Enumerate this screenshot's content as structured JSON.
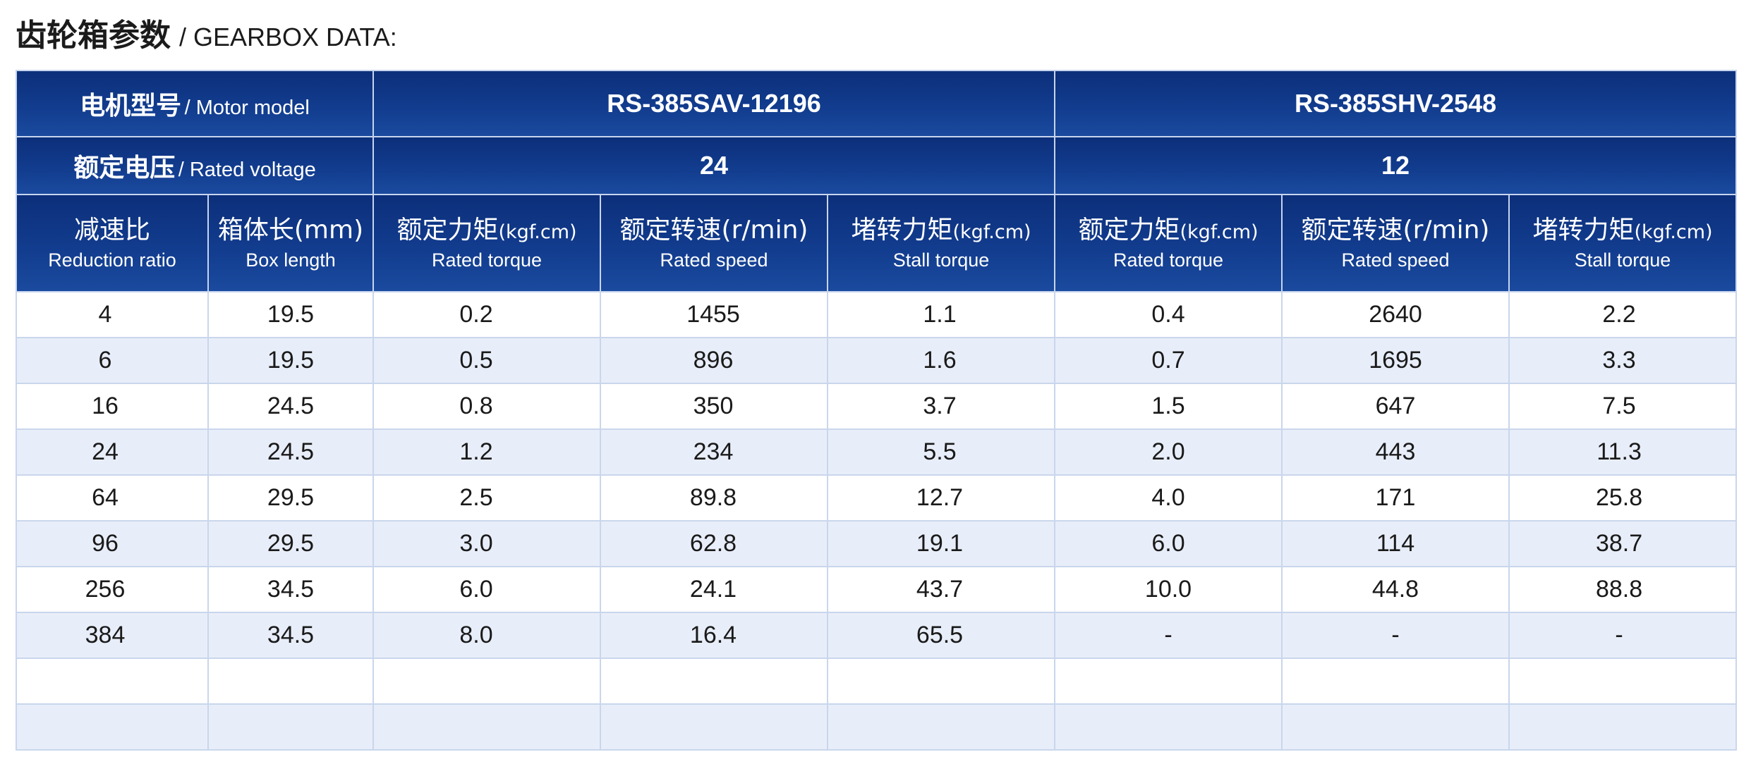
{
  "title": {
    "cn": "齿轮箱参数",
    "en": "/ GEARBOX DATA:"
  },
  "header": {
    "motor_label_cn": "电机型号",
    "motor_label_en": "/ Motor model",
    "voltage_label_cn": "额定电压",
    "voltage_label_en": "/ Rated voltage",
    "models": [
      {
        "name": "RS-385SAV-12196",
        "voltage": "24"
      },
      {
        "name": "RS-385SHV-2548",
        "voltage": "12"
      }
    ],
    "columns": [
      {
        "cn": "减速比",
        "unit": "",
        "en": "Reduction ratio"
      },
      {
        "cn": "箱体长(mm)",
        "unit": "",
        "en": "Box length"
      },
      {
        "cn": "额定力矩",
        "unit": "(kgf.cm)",
        "en": "Rated torque"
      },
      {
        "cn": "额定转速(r/min)",
        "unit": "",
        "en": "Rated speed"
      },
      {
        "cn": "堵转力矩",
        "unit": "(kgf.cm)",
        "en": "Stall torque"
      },
      {
        "cn": "额定力矩",
        "unit": "(kgf.cm)",
        "en": "Rated torque"
      },
      {
        "cn": "额定转速(r/min)",
        "unit": "",
        "en": "Rated speed"
      },
      {
        "cn": "堵转力矩",
        "unit": "(kgf.cm)",
        "en": "Stall torque"
      }
    ]
  },
  "rows": [
    [
      "4",
      "19.5",
      "0.2",
      "1455",
      "1.1",
      "0.4",
      "2640",
      "2.2"
    ],
    [
      "6",
      "19.5",
      "0.5",
      "896",
      "1.6",
      "0.7",
      "1695",
      "3.3"
    ],
    [
      "16",
      "24.5",
      "0.8",
      "350",
      "3.7",
      "1.5",
      "647",
      "7.5"
    ],
    [
      "24",
      "24.5",
      "1.2",
      "234",
      "5.5",
      "2.0",
      "443",
      "11.3"
    ],
    [
      "64",
      "29.5",
      "2.5",
      "89.8",
      "12.7",
      "4.0",
      "171",
      "25.8"
    ],
    [
      "96",
      "29.5",
      "3.0",
      "62.8",
      "19.1",
      "6.0",
      "114",
      "38.7"
    ],
    [
      "256",
      "34.5",
      "6.0",
      "24.1",
      "43.7",
      "10.0",
      "44.8",
      "88.8"
    ],
    [
      "384",
      "34.5",
      "8.0",
      "16.4",
      "65.5",
      "-",
      "-",
      "-"
    ],
    [
      "",
      "",
      "",
      "",
      "",
      "",
      "",
      ""
    ],
    [
      "",
      "",
      "",
      "",
      "",
      "",
      "",
      ""
    ]
  ],
  "colors": {
    "header_dark": "#0c2f7a",
    "header_light": "#1a4a9e",
    "row_alt": "#e8eef9",
    "grid": "#c9d6ec"
  }
}
